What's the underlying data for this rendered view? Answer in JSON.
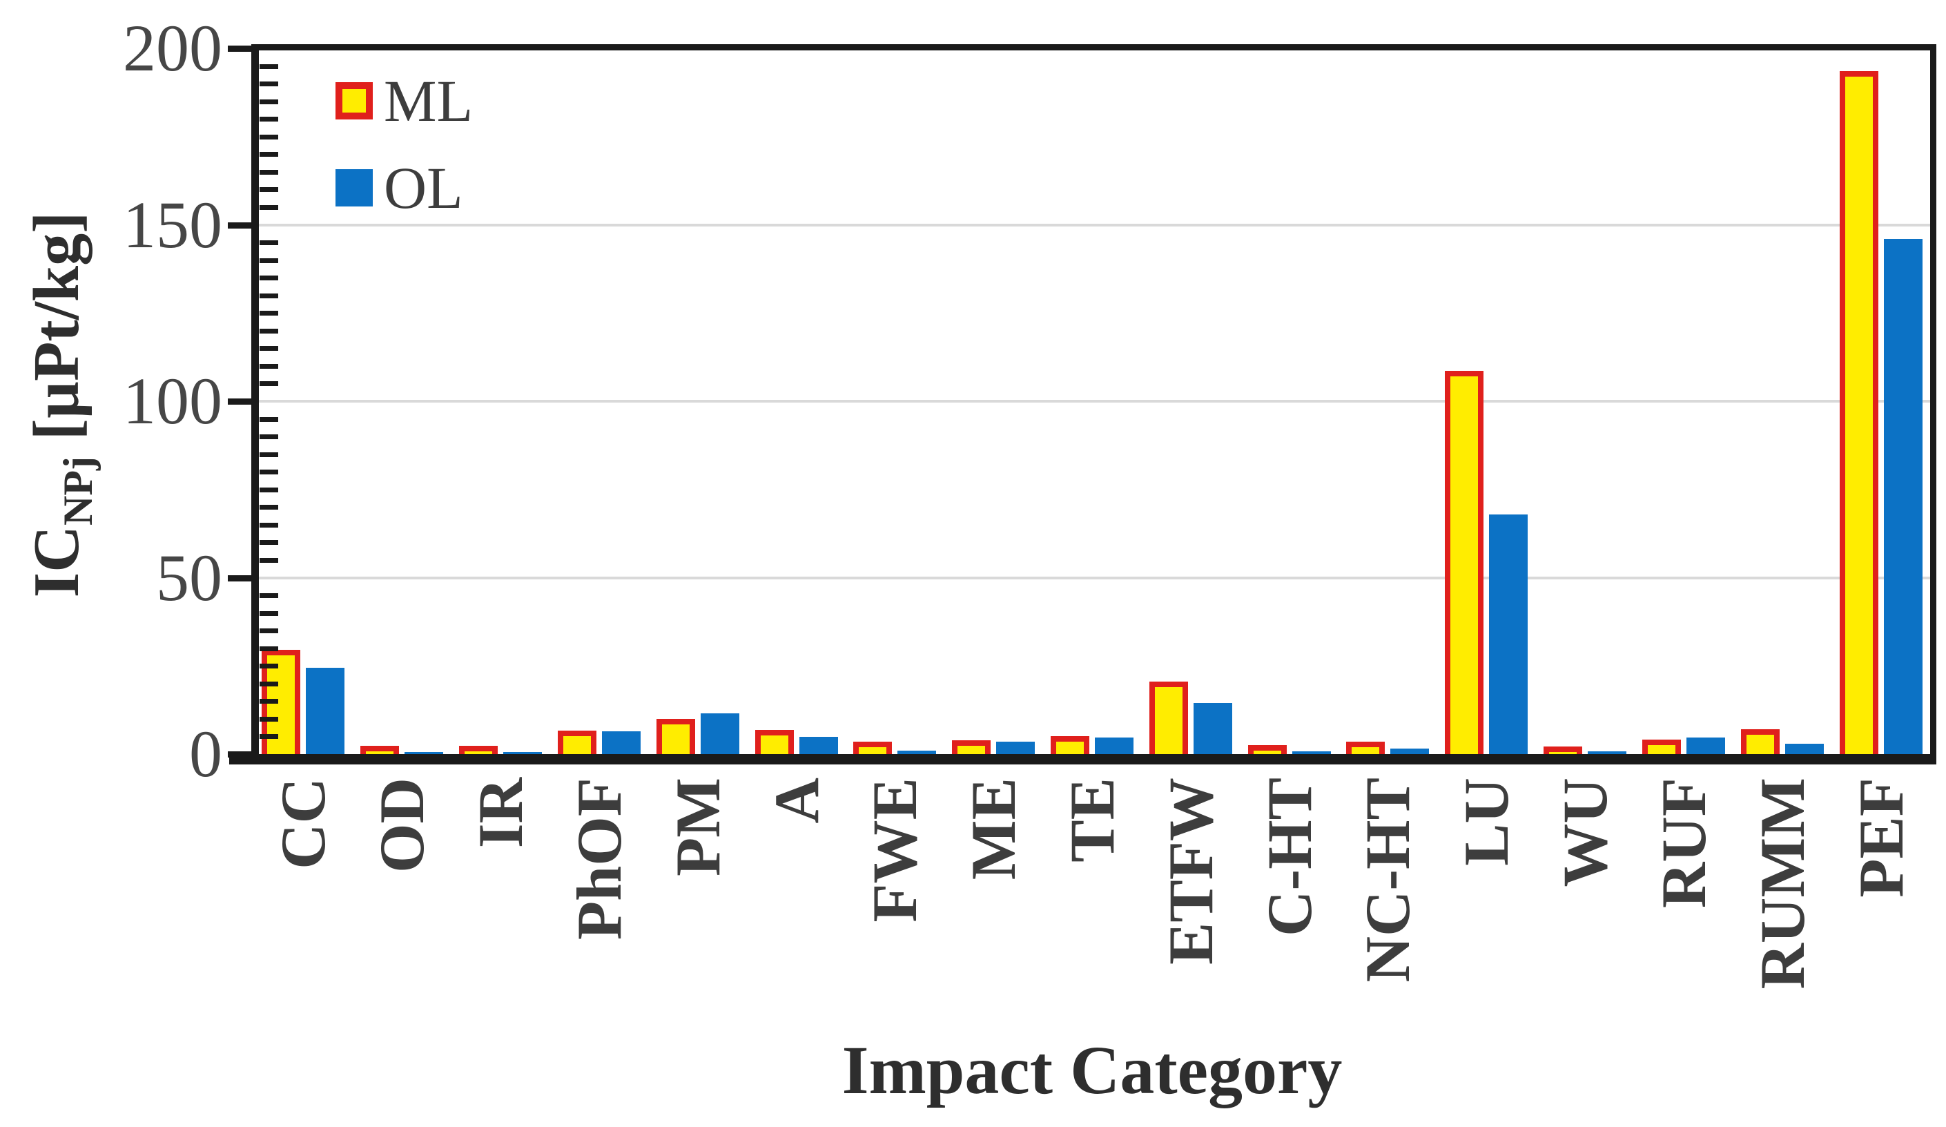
{
  "chart_data": {
    "type": "bar",
    "title": "",
    "xlabel": "Impact Category",
    "ylabel": {
      "prefix": "IC",
      "sub": "NPj",
      "unit": " [µPt/kg]"
    },
    "ylim": [
      0,
      200
    ],
    "yticks": [
      0,
      50,
      100,
      150,
      200
    ],
    "minor_tick_step": 5,
    "grid": "horizontal-at-50-100-150",
    "legend_position": "top-left-inside",
    "categories": [
      "CC",
      "OD",
      "IR",
      "PhOF",
      "PM",
      "A",
      "FWE",
      "ME",
      "TE",
      "ETFW",
      "C-HT",
      "NC-HT",
      "LU",
      "WU",
      "RUF",
      "RUMM",
      "PEF"
    ],
    "series": [
      {
        "name": "ML",
        "fill_color": "#ffed00",
        "border_color": "#e0201c",
        "values": [
          28,
          0.7,
          0.7,
          5.0,
          8.5,
          5.3,
          2.0,
          2.4,
          3.6,
          19,
          1.0,
          2.0,
          107,
          0.5,
          2.5,
          5.5,
          192
        ]
      },
      {
        "name": "OL",
        "fill_color": "#0c72c5",
        "border_color": "#0c72c5",
        "values": [
          24.5,
          0.6,
          0.6,
          6.5,
          11.5,
          4.8,
          1.0,
          3.5,
          4.7,
          14.5,
          0.8,
          1.6,
          68,
          0.7,
          4.7,
          3.0,
          146
        ]
      }
    ],
    "colors": {
      "gridline": "#d9d9d9",
      "axis": "#1a1a1a",
      "tick_label": "#464646",
      "category_label": "#3d3d3d"
    }
  }
}
